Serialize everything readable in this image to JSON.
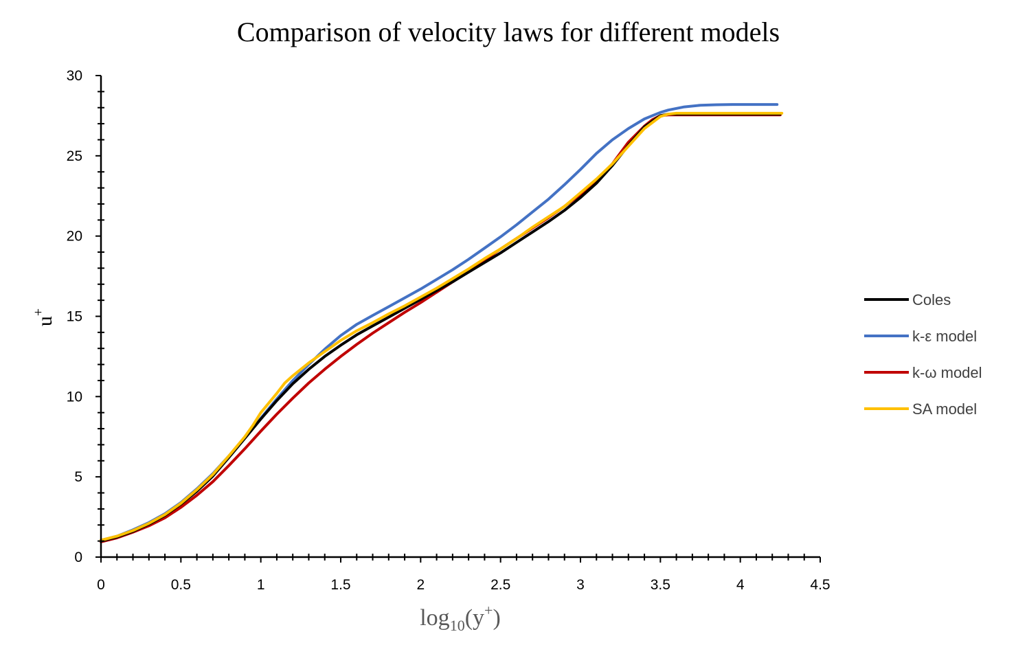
{
  "chart_data": {
    "type": "line",
    "title": "Comparison of velocity laws for different models",
    "xlabel": {
      "base": "log",
      "sub": "10",
      "arg": "(y",
      "sup": "+",
      "close": ")"
    },
    "ylabel": {
      "base": "u",
      "sup": "+"
    },
    "xlim": [
      0,
      4.5
    ],
    "ylim": [
      0,
      30
    ],
    "xticks": [
      "0",
      "0.5",
      "1",
      "1.5",
      "2",
      "2.5",
      "3",
      "3.5",
      "4",
      "4.5"
    ],
    "yticks": [
      "0",
      "5",
      "10",
      "15",
      "20",
      "25",
      "30"
    ],
    "legend_position": "right",
    "series": [
      {
        "name": "Coles",
        "color": "#000000",
        "x": [
          0,
          0.1,
          0.2,
          0.3,
          0.4,
          0.5,
          0.6,
          0.7,
          0.8,
          0.9,
          1.0,
          1.1,
          1.2,
          1.3,
          1.4,
          1.5,
          1.6,
          1.7,
          1.8,
          1.9,
          2.0,
          2.1,
          2.2,
          2.3,
          2.4,
          2.5,
          2.6,
          2.7,
          2.8,
          2.9,
          3.0,
          3.1,
          3.2,
          3.3,
          3.4,
          3.5,
          3.55,
          3.6,
          3.7,
          3.8,
          3.9,
          4.0,
          4.1,
          4.2,
          4.25
        ],
        "y": [
          1.0,
          1.25,
          1.6,
          2.05,
          2.6,
          3.3,
          4.1,
          5.05,
          6.2,
          7.4,
          8.6,
          9.75,
          10.8,
          11.7,
          12.5,
          13.2,
          13.85,
          14.4,
          14.95,
          15.5,
          16.05,
          16.6,
          17.15,
          17.75,
          18.35,
          18.95,
          19.6,
          20.25,
          20.9,
          21.6,
          22.4,
          23.3,
          24.4,
          25.65,
          26.8,
          27.5,
          27.6,
          27.6,
          27.6,
          27.6,
          27.6,
          27.6,
          27.6,
          27.6,
          27.6
        ]
      },
      {
        "name": "k-ε model",
        "color": "#4472C4",
        "x": [
          0,
          0.1,
          0.2,
          0.3,
          0.4,
          0.5,
          0.6,
          0.7,
          0.8,
          0.9,
          1.0,
          1.1,
          1.2,
          1.3,
          1.4,
          1.5,
          1.6,
          1.7,
          1.8,
          1.9,
          2.0,
          2.1,
          2.2,
          2.3,
          2.4,
          2.5,
          2.6,
          2.7,
          2.8,
          2.9,
          3.0,
          3.1,
          3.2,
          3.3,
          3.4,
          3.5,
          3.55,
          3.65,
          3.75,
          3.85,
          3.95,
          4.05,
          4.15,
          4.23
        ],
        "y": [
          1.05,
          1.3,
          1.7,
          2.15,
          2.7,
          3.4,
          4.25,
          5.2,
          6.3,
          7.45,
          8.65,
          9.85,
          11.0,
          12.0,
          12.95,
          13.8,
          14.5,
          15.05,
          15.6,
          16.15,
          16.7,
          17.3,
          17.9,
          18.55,
          19.25,
          19.95,
          20.7,
          21.5,
          22.3,
          23.2,
          24.15,
          25.15,
          26.0,
          26.7,
          27.3,
          27.7,
          27.85,
          28.05,
          28.15,
          28.18,
          28.2,
          28.2,
          28.2,
          28.2
        ]
      },
      {
        "name": "k-ω model",
        "color": "#C00000",
        "x": [
          0,
          0.1,
          0.2,
          0.3,
          0.4,
          0.5,
          0.6,
          0.7,
          0.8,
          0.9,
          1.0,
          1.1,
          1.2,
          1.3,
          1.4,
          1.5,
          1.6,
          1.7,
          1.8,
          1.9,
          2.0,
          2.1,
          2.2,
          2.3,
          2.4,
          2.5,
          2.6,
          2.7,
          2.8,
          2.9,
          3.0,
          3.1,
          3.2,
          3.3,
          3.4,
          3.45,
          3.5,
          3.55,
          3.6,
          3.7,
          3.8,
          3.9,
          4.0,
          4.1,
          4.2,
          4.25
        ],
        "y": [
          0.95,
          1.2,
          1.55,
          1.95,
          2.45,
          3.1,
          3.85,
          4.7,
          5.7,
          6.75,
          7.85,
          8.9,
          9.9,
          10.85,
          11.7,
          12.5,
          13.25,
          13.95,
          14.6,
          15.25,
          15.85,
          16.5,
          17.15,
          17.8,
          18.5,
          19.2,
          19.85,
          20.5,
          21.15,
          21.85,
          22.6,
          23.45,
          24.5,
          25.85,
          26.85,
          27.25,
          27.5,
          27.55,
          27.55,
          27.55,
          27.55,
          27.55,
          27.55,
          27.55,
          27.55,
          27.55
        ]
      },
      {
        "name": "SA model",
        "color": "#FFC000",
        "x": [
          0,
          0.1,
          0.2,
          0.3,
          0.4,
          0.5,
          0.6,
          0.7,
          0.8,
          0.9,
          0.95,
          1.0,
          1.05,
          1.1,
          1.15,
          1.2,
          1.3,
          1.4,
          1.5,
          1.6,
          1.7,
          1.8,
          1.9,
          2.0,
          2.1,
          2.2,
          2.3,
          2.4,
          2.5,
          2.6,
          2.7,
          2.8,
          2.9,
          3.0,
          3.1,
          3.2,
          3.3,
          3.4,
          3.5,
          3.55,
          3.6,
          3.7,
          3.8,
          3.9,
          4.0,
          4.1,
          4.2,
          4.26
        ],
        "y": [
          1.05,
          1.3,
          1.65,
          2.1,
          2.65,
          3.35,
          4.2,
          5.15,
          6.3,
          7.5,
          8.2,
          9.0,
          9.6,
          10.2,
          10.85,
          11.3,
          12.1,
          12.8,
          13.5,
          14.1,
          14.6,
          15.15,
          15.65,
          16.2,
          16.75,
          17.35,
          17.95,
          18.6,
          19.2,
          19.85,
          20.55,
          21.2,
          21.85,
          22.7,
          23.55,
          24.5,
          25.6,
          26.7,
          27.45,
          27.6,
          27.65,
          27.65,
          27.65,
          27.65,
          27.65,
          27.65,
          27.65,
          27.65
        ]
      }
    ]
  }
}
